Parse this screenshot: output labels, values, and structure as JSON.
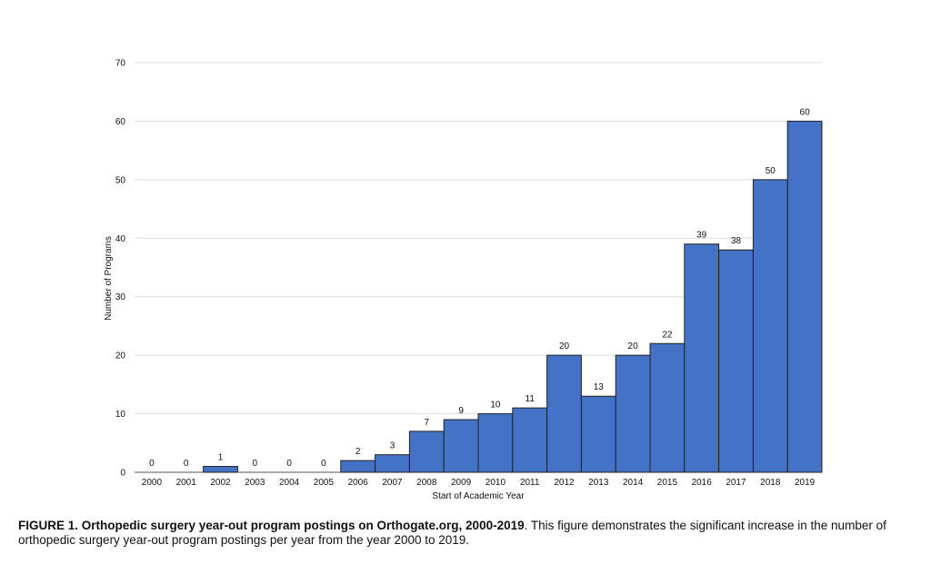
{
  "chart_data": {
    "type": "bar",
    "title": "",
    "xlabel": "Start of Academic Year",
    "ylabel": "Number of Programs",
    "ylim": [
      0,
      70
    ],
    "yticks": [
      0,
      10,
      20,
      30,
      40,
      50,
      60,
      70
    ],
    "grid": true,
    "bar_color": "#4472c4",
    "categories": [
      "2000",
      "2001",
      "2002",
      "2003",
      "2004",
      "2005",
      "2006",
      "2007",
      "2008",
      "2009",
      "2010",
      "2011",
      "2012",
      "2013",
      "2014",
      "2015",
      "2016",
      "2017",
      "2018",
      "2019"
    ],
    "values": [
      0,
      0,
      1,
      0,
      0,
      0,
      2,
      3,
      7,
      9,
      10,
      11,
      20,
      13,
      20,
      22,
      39,
      38,
      50,
      60
    ]
  },
  "caption": {
    "bold": "FIGURE 1. Orthopedic surgery year-out program postings on Orthogate.org, 2000-2019",
    "text": ". This figure demonstrates the significant increase in the number of orthopedic surgery year-out program postings per year from the year 2000 to 2019."
  }
}
